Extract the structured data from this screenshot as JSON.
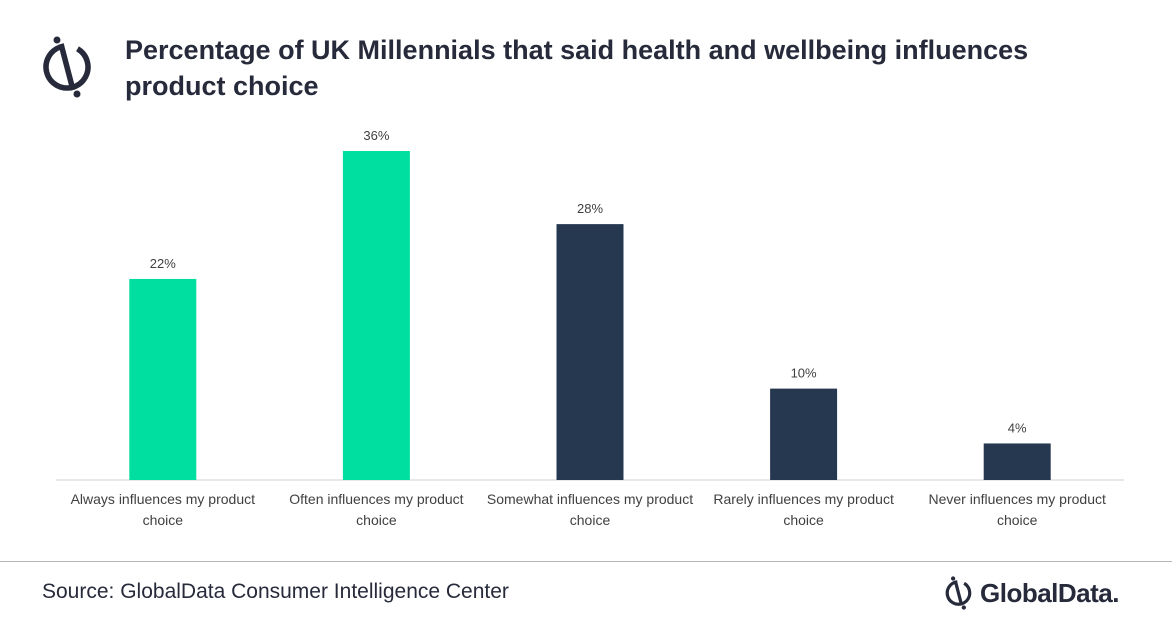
{
  "header": {
    "title": "Percentage of UK Millennials that said health and wellbeing influences product choice",
    "logo_icon": "globaldata-mark-icon"
  },
  "chart_data": {
    "type": "bar",
    "title": "Percentage of UK Millennials that said health and wellbeing influences product choice",
    "categories": [
      "Always influences my product choice",
      "Often influences my product choice",
      "Somewhat influences my product choice",
      "Rarely influences my product choice",
      "Never influences my product choice"
    ],
    "values": [
      22,
      36,
      28,
      10,
      4
    ],
    "data_labels": [
      "22%",
      "36%",
      "28%",
      "10%",
      "4%"
    ],
    "unit": "%",
    "bar_colors": [
      "#00dea0",
      "#00dea0",
      "#263850",
      "#263850",
      "#263850"
    ],
    "ylim": [
      0,
      36
    ],
    "grid": false,
    "legend": "none",
    "xlabel": "",
    "ylabel": ""
  },
  "footer": {
    "source": "Source: GlobalData Consumer Intelligence Center",
    "brand": "GlobalData.",
    "brand_icon": "globaldata-mark-icon"
  },
  "colors": {
    "accent_green": "#00dea0",
    "navy": "#263850",
    "text_dark": "#262a3a"
  }
}
